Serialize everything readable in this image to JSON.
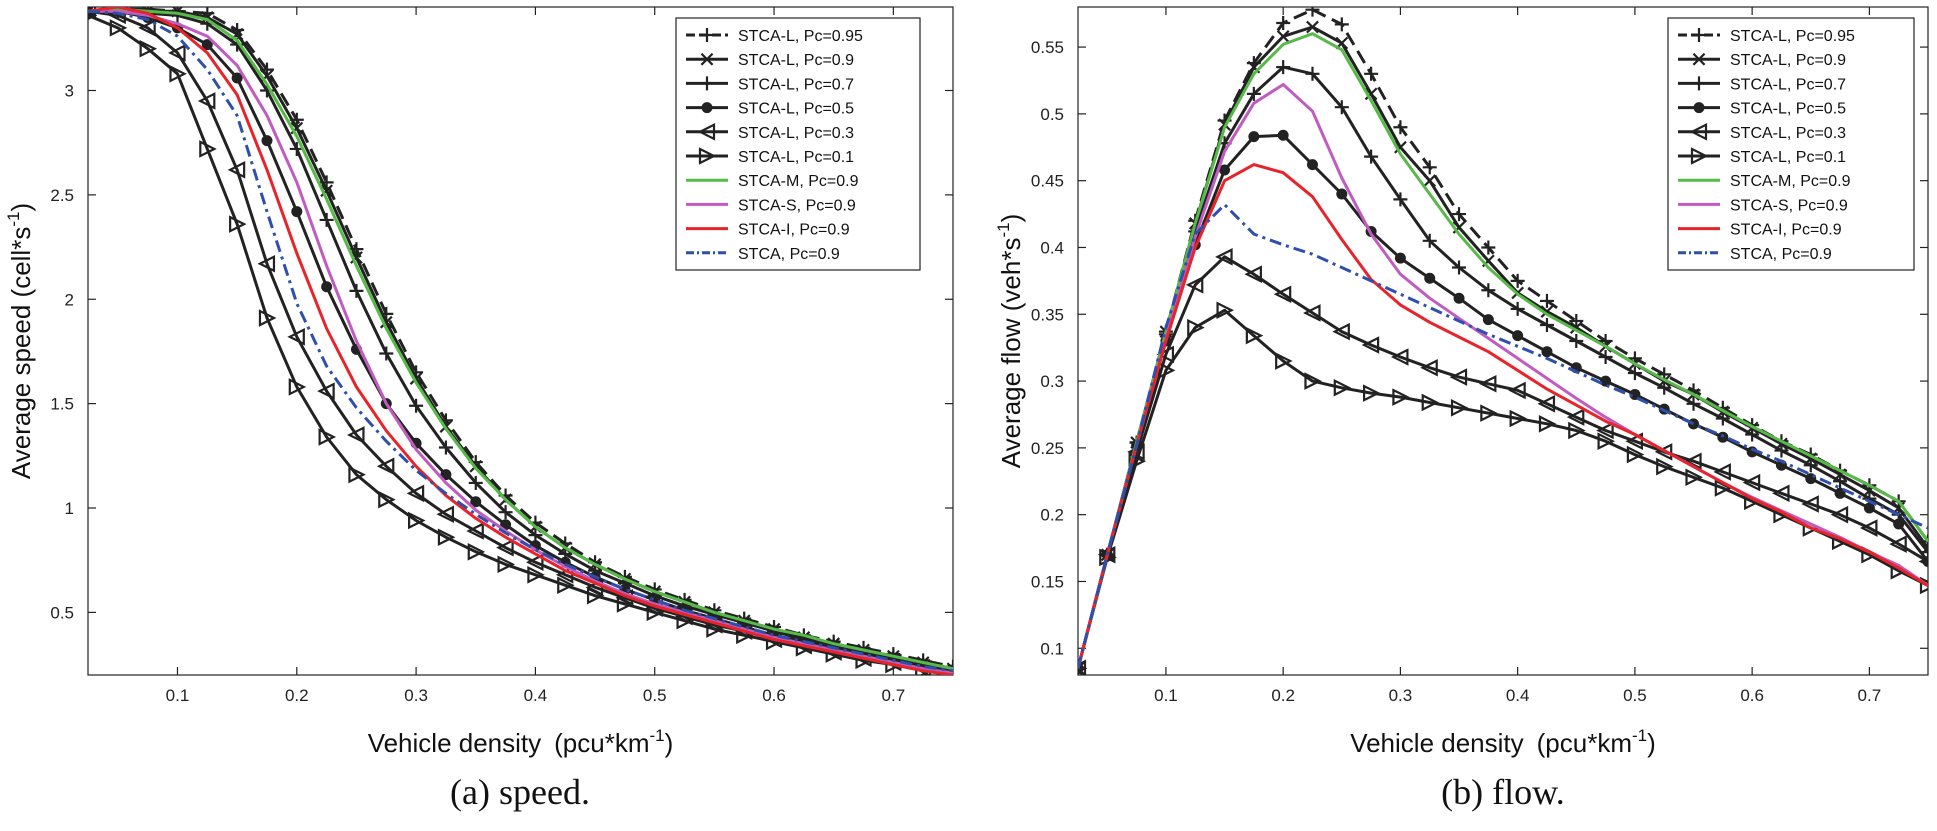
{
  "chart_data": [
    {
      "type": "line",
      "title": "",
      "caption": "(a) speed.",
      "xlabel": "Vehicle density (pcu*km",
      "xlabel_sup": "-1",
      "xlabel_end": ")",
      "ylabel": "Average speed (cell*s",
      "ylabel_sup": "-1",
      "ylabel_end": ")",
      "xlim": [
        0.025,
        0.75
      ],
      "ylim": [
        0.2,
        3.4
      ],
      "xticks": [
        "0.1",
        "0.2",
        "0.3",
        "0.4",
        "0.5",
        "0.6",
        "0.7"
      ],
      "yticks": [
        "0.5",
        "1",
        "1.5",
        "2",
        "2.5",
        "3"
      ],
      "legend_position": "top-right",
      "x": [
        0.025,
        0.05,
        0.075,
        0.1,
        0.125,
        0.15,
        0.175,
        0.2,
        0.225,
        0.25,
        0.275,
        0.3,
        0.325,
        0.35,
        0.375,
        0.4,
        0.425,
        0.45,
        0.475,
        0.5,
        0.525,
        0.55,
        0.575,
        0.6,
        0.625,
        0.65,
        0.675,
        0.7,
        0.725,
        0.75
      ],
      "series": [
        {
          "name": "STCA-L, Pc=0.95",
          "values": [
            3.38,
            3.39,
            3.39,
            3.38,
            3.37,
            3.29,
            3.1,
            2.86,
            2.56,
            2.24,
            1.93,
            1.65,
            1.42,
            1.22,
            1.06,
            0.93,
            0.83,
            0.74,
            0.67,
            0.61,
            0.56,
            0.51,
            0.47,
            0.43,
            0.39,
            0.36,
            0.33,
            0.3,
            0.27,
            0.24
          ]
        },
        {
          "name": "STCA-L, Pc=0.9",
          "values": [
            3.38,
            3.39,
            3.38,
            3.38,
            3.35,
            3.27,
            3.07,
            2.82,
            2.52,
            2.2,
            1.89,
            1.62,
            1.39,
            1.2,
            1.04,
            0.91,
            0.81,
            0.73,
            0.66,
            0.6,
            0.55,
            0.5,
            0.46,
            0.42,
            0.38,
            0.35,
            0.32,
            0.29,
            0.26,
            0.23
          ]
        },
        {
          "name": "STCA-L, Pc=0.7",
          "values": [
            3.38,
            3.38,
            3.37,
            3.36,
            3.32,
            3.22,
            3.0,
            2.72,
            2.38,
            2.04,
            1.74,
            1.49,
            1.29,
            1.12,
            0.98,
            0.87,
            0.78,
            0.7,
            0.64,
            0.58,
            0.53,
            0.49,
            0.45,
            0.41,
            0.37,
            0.34,
            0.31,
            0.28,
            0.25,
            0.22
          ]
        },
        {
          "name": "STCA-L, Pc=0.5",
          "values": [
            3.38,
            3.38,
            3.35,
            3.3,
            3.22,
            3.06,
            2.76,
            2.42,
            2.06,
            1.76,
            1.5,
            1.31,
            1.16,
            1.03,
            0.92,
            0.82,
            0.74,
            0.67,
            0.61,
            0.56,
            0.51,
            0.47,
            0.43,
            0.39,
            0.36,
            0.33,
            0.3,
            0.27,
            0.24,
            0.21
          ]
        },
        {
          "name": "STCA-L, Pc=0.3",
          "values": [
            3.38,
            3.36,
            3.3,
            3.18,
            2.95,
            2.62,
            2.17,
            1.82,
            1.56,
            1.35,
            1.2,
            1.07,
            0.97,
            0.89,
            0.81,
            0.74,
            0.68,
            0.62,
            0.57,
            0.52,
            0.48,
            0.44,
            0.41,
            0.37,
            0.34,
            0.31,
            0.28,
            0.26,
            0.23,
            0.21
          ]
        },
        {
          "name": "STCA-L, Pc=0.1",
          "values": [
            3.36,
            3.3,
            3.2,
            3.08,
            2.72,
            2.36,
            1.91,
            1.58,
            1.34,
            1.16,
            1.04,
            0.94,
            0.86,
            0.79,
            0.73,
            0.68,
            0.63,
            0.58,
            0.54,
            0.5,
            0.46,
            0.42,
            0.39,
            0.36,
            0.33,
            0.3,
            0.27,
            0.25,
            0.22,
            0.2
          ]
        },
        {
          "name": "STCA-M, Pc=0.9",
          "values": [
            3.38,
            3.39,
            3.38,
            3.37,
            3.34,
            3.24,
            3.03,
            2.78,
            2.48,
            2.16,
            1.86,
            1.6,
            1.38,
            1.19,
            1.04,
            0.91,
            0.81,
            0.73,
            0.66,
            0.6,
            0.55,
            0.5,
            0.46,
            0.42,
            0.39,
            0.35,
            0.32,
            0.29,
            0.26,
            0.23
          ]
        },
        {
          "name": "STCA-S, Pc=0.9",
          "values": [
            3.38,
            3.38,
            3.36,
            3.32,
            3.26,
            3.12,
            2.88,
            2.56,
            2.16,
            1.8,
            1.5,
            1.28,
            1.12,
            0.99,
            0.89,
            0.8,
            0.72,
            0.65,
            0.59,
            0.54,
            0.5,
            0.46,
            0.42,
            0.38,
            0.35,
            0.32,
            0.29,
            0.26,
            0.23,
            0.21
          ]
        },
        {
          "name": "STCA-I, Pc=0.9",
          "values": [
            3.38,
            3.4,
            3.37,
            3.3,
            3.18,
            2.98,
            2.62,
            2.22,
            1.86,
            1.58,
            1.37,
            1.2,
            1.06,
            0.95,
            0.86,
            0.78,
            0.7,
            0.64,
            0.58,
            0.53,
            0.49,
            0.45,
            0.41,
            0.37,
            0.34,
            0.31,
            0.28,
            0.25,
            0.22,
            0.2
          ]
        },
        {
          "name": "STCA, Pc=0.9",
          "values": [
            3.38,
            3.37,
            3.34,
            3.26,
            3.1,
            2.88,
            2.42,
            1.98,
            1.68,
            1.48,
            1.32,
            1.18,
            1.07,
            0.97,
            0.88,
            0.8,
            0.73,
            0.67,
            0.61,
            0.56,
            0.51,
            0.47,
            0.43,
            0.39,
            0.36,
            0.33,
            0.3,
            0.27,
            0.24,
            0.22
          ]
        }
      ]
    },
    {
      "type": "line",
      "title": "",
      "caption": "(b) flow.",
      "xlabel": "Vehicle density (pcu*km",
      "xlabel_sup": "-1",
      "xlabel_end": ")",
      "ylabel": "Average flow (veh*s",
      "ylabel_sup": "-1",
      "ylabel_end": ")",
      "xlim": [
        0.025,
        0.75
      ],
      "ylim": [
        0.08,
        0.58
      ],
      "xticks": [
        "0.1",
        "0.2",
        "0.3",
        "0.4",
        "0.5",
        "0.6",
        "0.7"
      ],
      "yticks": [
        "0.1",
        "0.15",
        "0.2",
        "0.25",
        "0.3",
        "0.35",
        "0.4",
        "0.45",
        "0.5",
        "0.55"
      ],
      "legend_position": "top-right",
      "x": [
        0.025,
        0.05,
        0.075,
        0.1,
        0.125,
        0.15,
        0.175,
        0.2,
        0.225,
        0.25,
        0.275,
        0.3,
        0.325,
        0.35,
        0.375,
        0.4,
        0.425,
        0.45,
        0.475,
        0.5,
        0.525,
        0.55,
        0.575,
        0.6,
        0.625,
        0.65,
        0.675,
        0.7,
        0.725,
        0.75
      ],
      "series": [
        {
          "name": "STCA-L, Pc=0.95",
          "values": [
            0.085,
            0.17,
            0.254,
            0.337,
            0.42,
            0.495,
            0.538,
            0.568,
            0.578,
            0.567,
            0.53,
            0.49,
            0.46,
            0.425,
            0.4,
            0.375,
            0.36,
            0.345,
            0.33,
            0.317,
            0.305,
            0.293,
            0.28,
            0.267,
            0.255,
            0.245,
            0.233,
            0.222,
            0.21,
            0.18
          ]
        },
        {
          "name": "STCA-L, Pc=0.9",
          "values": [
            0.085,
            0.17,
            0.254,
            0.337,
            0.418,
            0.492,
            0.535,
            0.558,
            0.565,
            0.553,
            0.515,
            0.475,
            0.45,
            0.415,
            0.39,
            0.366,
            0.352,
            0.34,
            0.326,
            0.313,
            0.3,
            0.29,
            0.277,
            0.265,
            0.253,
            0.242,
            0.23,
            0.218,
            0.205,
            0.175
          ]
        },
        {
          "name": "STCA-L, Pc=0.7",
          "values": [
            0.085,
            0.17,
            0.254,
            0.335,
            0.412,
            0.478,
            0.515,
            0.535,
            0.53,
            0.505,
            0.468,
            0.436,
            0.405,
            0.385,
            0.368,
            0.354,
            0.342,
            0.33,
            0.318,
            0.306,
            0.295,
            0.283,
            0.272,
            0.26,
            0.248,
            0.237,
            0.225,
            0.212,
            0.2,
            0.172
          ]
        },
        {
          "name": "STCA-L, Pc=0.5",
          "values": [
            0.085,
            0.17,
            0.252,
            0.33,
            0.402,
            0.458,
            0.483,
            0.484,
            0.462,
            0.44,
            0.412,
            0.392,
            0.377,
            0.362,
            0.346,
            0.334,
            0.322,
            0.31,
            0.3,
            0.29,
            0.279,
            0.268,
            0.258,
            0.247,
            0.237,
            0.227,
            0.216,
            0.205,
            0.193,
            0.165
          ]
        },
        {
          "name": "STCA-L, Pc=0.3",
          "values": [
            0.085,
            0.17,
            0.247,
            0.32,
            0.372,
            0.393,
            0.38,
            0.365,
            0.351,
            0.337,
            0.327,
            0.318,
            0.31,
            0.303,
            0.298,
            0.293,
            0.283,
            0.273,
            0.263,
            0.255,
            0.247,
            0.24,
            0.232,
            0.224,
            0.216,
            0.208,
            0.2,
            0.19,
            0.178,
            0.165
          ]
        },
        {
          "name": "STCA-L, Pc=0.1",
          "values": [
            0.085,
            0.168,
            0.24,
            0.308,
            0.34,
            0.353,
            0.334,
            0.315,
            0.3,
            0.295,
            0.291,
            0.288,
            0.284,
            0.28,
            0.276,
            0.272,
            0.268,
            0.263,
            0.255,
            0.245,
            0.236,
            0.228,
            0.22,
            0.21,
            0.2,
            0.19,
            0.18,
            0.17,
            0.158,
            0.147
          ]
        },
        {
          "name": "STCA-M, Pc=0.9",
          "values": [
            0.085,
            0.17,
            0.254,
            0.337,
            0.418,
            0.49,
            0.53,
            0.552,
            0.56,
            0.548,
            0.51,
            0.47,
            0.44,
            0.41,
            0.385,
            0.365,
            0.35,
            0.338,
            0.326,
            0.313,
            0.301,
            0.29,
            0.278,
            0.266,
            0.255,
            0.244,
            0.233,
            0.222,
            0.21,
            0.18
          ]
        },
        {
          "name": "STCA-S, Pc=0.9",
          "values": [
            0.085,
            0.17,
            0.252,
            0.332,
            0.408,
            0.472,
            0.508,
            0.522,
            0.502,
            0.452,
            0.41,
            0.38,
            0.362,
            0.347,
            0.332,
            0.317,
            0.302,
            0.287,
            0.273,
            0.26,
            0.248,
            0.236,
            0.224,
            0.213,
            0.203,
            0.193,
            0.183,
            0.172,
            0.162,
            0.147
          ]
        },
        {
          "name": "STCA-I, Pc=0.9",
          "values": [
            0.085,
            0.17,
            0.252,
            0.33,
            0.4,
            0.45,
            0.462,
            0.456,
            0.438,
            0.406,
            0.376,
            0.357,
            0.344,
            0.333,
            0.322,
            0.308,
            0.294,
            0.282,
            0.27,
            0.26,
            0.248,
            0.236,
            0.224,
            0.212,
            0.202,
            0.19,
            0.182,
            0.172,
            0.16,
            0.147
          ]
        },
        {
          "name": "STCA, Pc=0.9",
          "values": [
            0.085,
            0.17,
            0.252,
            0.34,
            0.41,
            0.432,
            0.41,
            0.402,
            0.395,
            0.385,
            0.375,
            0.365,
            0.355,
            0.345,
            0.335,
            0.326,
            0.317,
            0.307,
            0.297,
            0.288,
            0.278,
            0.268,
            0.259,
            0.249,
            0.24,
            0.23,
            0.22,
            0.21,
            0.2,
            0.19
          ]
        }
      ]
    }
  ],
  "series_styles": [
    {
      "color": "#222222",
      "dash": "dashed",
      "marker": "plus"
    },
    {
      "color": "#222222",
      "dash": "solid",
      "marker": "x"
    },
    {
      "color": "#222222",
      "dash": "solid",
      "marker": "plus"
    },
    {
      "color": "#222222",
      "dash": "solid",
      "marker": "circle"
    },
    {
      "color": "#222222",
      "dash": "solid",
      "marker": "tri-left"
    },
    {
      "color": "#222222",
      "dash": "solid",
      "marker": "tri-right"
    },
    {
      "color": "#56b948",
      "dash": "solid",
      "marker": "none"
    },
    {
      "color": "#c05cc0",
      "dash": "solid",
      "marker": "none"
    },
    {
      "color": "#e8232a",
      "dash": "solid",
      "marker": "none"
    },
    {
      "color": "#2e4fae",
      "dash": "dashdot",
      "marker": "none"
    }
  ]
}
